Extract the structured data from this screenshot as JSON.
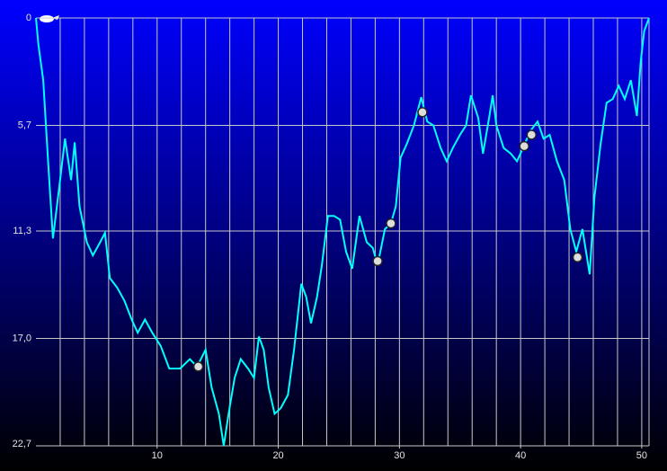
{
  "chart_data": {
    "type": "line",
    "x": [
      0,
      0.2,
      0.6,
      1.0,
      1.4,
      1.9,
      2.4,
      2.9,
      3.2,
      3.6,
      4.2,
      4.7,
      5.3,
      5.7,
      6.1,
      6.7,
      7.3,
      7.9,
      8.4,
      9.0,
      9.6,
      10.3,
      11.0,
      11.9,
      12.7,
      13.3,
      14.0,
      14.5,
      15.1,
      15.5,
      15.9,
      16.4,
      16.9,
      17.5,
      18.0,
      18.4,
      18.8,
      19.2,
      19.7,
      20.2,
      20.8,
      21.3,
      21.9,
      22.3,
      22.7,
      23.2,
      23.6,
      24.1,
      24.6,
      25.1,
      25.6,
      26.1,
      26.7,
      27.3,
      27.8,
      28.2,
      28.8,
      29.3,
      29.7,
      30.1,
      30.6,
      31.2,
      31.8,
      32.3,
      32.8,
      33.4,
      33.9,
      34.4,
      35.0,
      35.5,
      35.9,
      36.5,
      36.9,
      37.4,
      37.7,
      38.0,
      38.6,
      39.2,
      39.7,
      40.2,
      40.8,
      41.4,
      41.9,
      42.4,
      43.0,
      43.6,
      44.1,
      44.6,
      45.1,
      45.7,
      46.1,
      46.6,
      47.1,
      47.6,
      48.1,
      48.6,
      49.1,
      49.6,
      49.9,
      50.2,
      50.6
    ],
    "series": [
      {
        "color": "#00ffff",
        "values": [
          0,
          1.4,
          3.3,
          7.6,
          11.7,
          9.1,
          6.4,
          8.6,
          6.6,
          10.0,
          11.9,
          12.6,
          11.9,
          11.4,
          13.8,
          14.3,
          15.0,
          16.0,
          16.7,
          16.0,
          16.7,
          17.4,
          18.6,
          18.6,
          18.1,
          18.5,
          17.6,
          19.6,
          21.0,
          22.7,
          21.0,
          19.1,
          18.1,
          18.6,
          19.1,
          16.9,
          17.6,
          19.6,
          21.0,
          20.7,
          20.0,
          17.6,
          14.1,
          14.8,
          16.2,
          14.8,
          13.1,
          10.5,
          10.5,
          10.7,
          12.4,
          13.3,
          10.5,
          11.9,
          12.2,
          13.1,
          11.2,
          10.9,
          10.0,
          7.4,
          6.7,
          5.7,
          4.2,
          5.5,
          5.7,
          6.9,
          7.6,
          6.9,
          6.2,
          5.7,
          4.1,
          5.3,
          7.2,
          5.3,
          4.1,
          5.7,
          6.9,
          7.2,
          7.6,
          6.9,
          6.0,
          5.5,
          6.4,
          6.2,
          7.6,
          8.6,
          11.2,
          12.4,
          11.2,
          13.6,
          9.5,
          6.7,
          4.5,
          4.3,
          3.6,
          4.3,
          3.3,
          5.2,
          2.4,
          0.7,
          0
        ]
      }
    ],
    "events": {
      "x": [
        13.4,
        28.2,
        29.3,
        31.9,
        40.3,
        40.9,
        44.7
      ],
      "values": [
        18.5,
        12.9,
        10.9,
        5.0,
        6.8,
        6.2,
        12.7
      ]
    },
    "xlim": [
      0,
      50.6
    ],
    "ylim": [
      0,
      22.7
    ],
    "inverted_y": true,
    "xticks": [
      10,
      20,
      30,
      40,
      50
    ],
    "xgrid": [
      2,
      4,
      6,
      8,
      10,
      12,
      14,
      16,
      18,
      20,
      22,
      24,
      26,
      28,
      30,
      32,
      34,
      36,
      38,
      40,
      42,
      44,
      46,
      48,
      50
    ],
    "yticks": [
      0,
      {
        "value": 5.7,
        "label": "5,7"
      },
      {
        "value": 11.3,
        "label": "11,3"
      },
      {
        "value": 17.0,
        "label": "17,0"
      },
      {
        "value": 22.7,
        "label": "22,7"
      }
    ],
    "grid": true
  }
}
